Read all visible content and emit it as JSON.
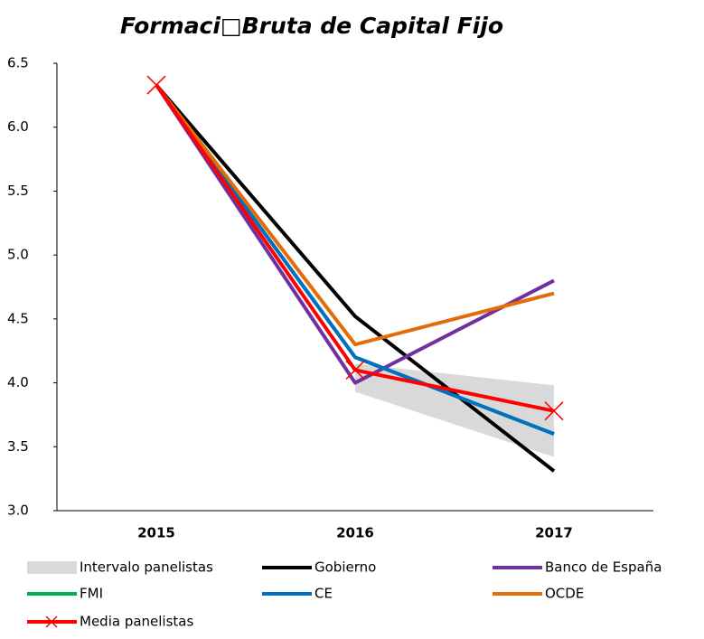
{
  "chart_data": {
    "type": "line",
    "title": "Formaci□Bruta de Capital Fijo",
    "categories": [
      "2015",
      "2016",
      "2017"
    ],
    "ylim": [
      3,
      6.5
    ],
    "yticks": [
      {
        "value": 3,
        "label": "3.0"
      },
      3.5,
      {
        "value": 4,
        "label": "4.0"
      },
      4.5,
      {
        "value": 5,
        "label": "5.0"
      },
      5.5,
      {
        "value": 6,
        "label": "6.0"
      },
      6.5
    ],
    "band": {
      "name": "Intervalo panelistas",
      "color": "#d9d9d9",
      "low": [
        null,
        3.93,
        3.42
      ],
      "high": [
        null,
        4.15,
        3.98
      ]
    },
    "series": [
      {
        "name": "Gobierno",
        "color": "#000000",
        "values": [
          6.33,
          4.52,
          3.31
        ]
      },
      {
        "name": "Banco de España",
        "color": "#7030a0",
        "values": [
          6.33,
          4.0,
          4.8
        ]
      },
      {
        "name": "FMI",
        "color": "#00b050",
        "values": [
          6.33,
          4.2,
          3.6
        ]
      },
      {
        "name": "CE",
        "color": "#0070c0",
        "values": [
          6.33,
          4.2,
          3.6
        ]
      },
      {
        "name": "OCDE",
        "color": "#e36c09",
        "values": [
          6.33,
          4.3,
          4.7
        ]
      },
      {
        "name": "Media panelistas",
        "color": "#ff0000",
        "values": [
          6.33,
          4.1,
          3.78
        ],
        "marker": "x"
      }
    ]
  }
}
